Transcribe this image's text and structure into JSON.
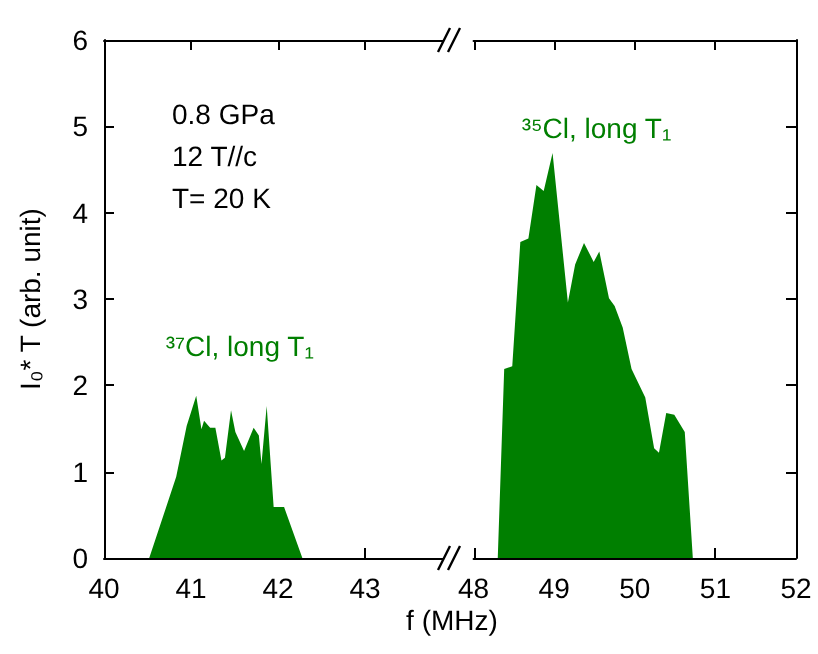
{
  "chart_data": [
    {
      "type": "area",
      "ylabel": "I₀* T (arb. unit)",
      "xlim": [
        40,
        44
      ],
      "xticks": [
        40,
        41,
        42,
        43
      ],
      "ylim": [
        0,
        6
      ],
      "yticks": [
        0,
        1,
        2,
        3,
        4,
        5,
        6
      ],
      "grid": false,
      "annotations": [
        "0.8 GPa",
        "12 T//c",
        "T= 20 K",
        "³⁷Cl, long T₁"
      ],
      "series": [
        {
          "color": "#007f00",
          "x": [
            40.52,
            40.83,
            40.95,
            41.06,
            41.12,
            41.15,
            41.22,
            41.28,
            41.35,
            41.39,
            41.46,
            41.51,
            41.61,
            41.72,
            41.78,
            41.81,
            41.87,
            41.95,
            42.07,
            42.28,
            43.0
          ],
          "values": [
            0,
            0.94,
            1.53,
            1.88,
            1.49,
            1.59,
            1.51,
            1.51,
            1.13,
            1.16,
            1.71,
            1.46,
            1.24,
            1.51,
            1.42,
            1.09,
            1.76,
            0.59,
            0.59,
            0,
            0
          ]
        }
      ]
    },
    {
      "type": "area",
      "xlabel": "f (MHz)",
      "xlim": [
        48,
        52
      ],
      "xticks": [
        48,
        49,
        50,
        51,
        52
      ],
      "ylim": [
        0,
        6
      ],
      "yticks": [
        0,
        1,
        2,
        3,
        4,
        5,
        6
      ],
      "tick_labels": "x",
      "grid": false,
      "annotations": [
        "³⁵Cl, long T₁"
      ],
      "series": [
        {
          "color": "#007f00",
          "x": [
            48.3,
            48.38,
            48.48,
            48.58,
            48.68,
            48.78,
            48.87,
            48.98,
            49.17,
            49.26,
            49.37,
            49.49,
            49.56,
            49.68,
            49.75,
            49.85,
            49.96,
            50.13,
            50.24,
            50.3,
            50.39,
            50.49,
            50.62,
            50.72
          ],
          "values": [
            0,
            2.19,
            2.22,
            3.66,
            3.7,
            4.32,
            4.25,
            4.69,
            2.96,
            3.4,
            3.65,
            3.43,
            3.55,
            3.01,
            2.92,
            2.67,
            2.19,
            1.86,
            1.27,
            1.22,
            1.68,
            1.66,
            1.46,
            0
          ]
        }
      ]
    }
  ]
}
